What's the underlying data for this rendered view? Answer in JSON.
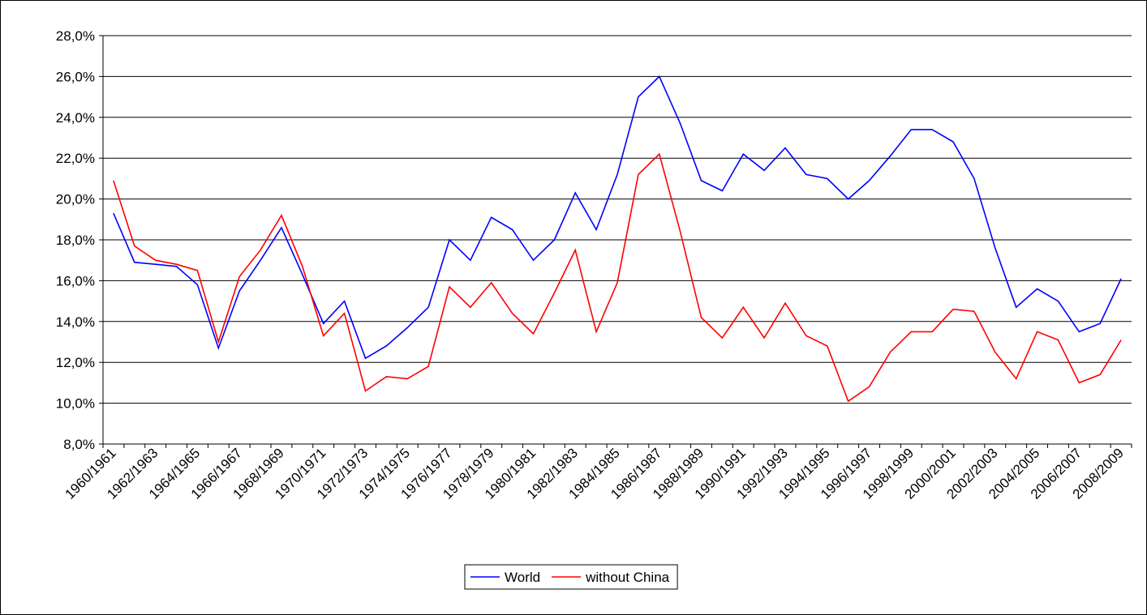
{
  "chart_data": {
    "type": "line",
    "categories": [
      "1960/1961",
      null,
      "1962/1963",
      null,
      "1964/1965",
      null,
      "1966/1967",
      null,
      "1968/1969",
      null,
      "1970/1971",
      null,
      "1972/1973",
      null,
      "1974/1975",
      null,
      "1976/1977",
      null,
      "1978/1979",
      null,
      "1980/1981",
      null,
      "1982/1983",
      null,
      "1984/1985",
      null,
      "1986/1987",
      null,
      "1988/1989",
      null,
      "1990/1991",
      null,
      "1992/1993",
      null,
      "1994/1995",
      null,
      "1996/1997",
      null,
      "1998/1999",
      null,
      "2000/2001",
      null,
      "2002/2003",
      null,
      "2004/2005",
      null,
      "2006/2007",
      null,
      "2008/2009"
    ],
    "series": [
      {
        "name": "World",
        "color": "#0000ff",
        "values": [
          19.3,
          16.9,
          16.8,
          16.7,
          15.8,
          12.7,
          15.5,
          17.0,
          18.6,
          16.3,
          13.9,
          15.0,
          12.2,
          12.8,
          13.7,
          14.7,
          18.0,
          17.0,
          19.1,
          18.5,
          17.0,
          18.0,
          20.3,
          18.5,
          21.2,
          25.0,
          26.0,
          23.7,
          20.9,
          20.4,
          22.2,
          21.4,
          22.5,
          21.2,
          21.0,
          20.0,
          20.9,
          22.1,
          23.4,
          23.4,
          22.8,
          21.0,
          17.6,
          14.7,
          15.6,
          15.0,
          13.5,
          13.9,
          16.1
        ]
      },
      {
        "name": "without China",
        "color": "#ff0000",
        "values": [
          20.9,
          17.7,
          17.0,
          16.8,
          16.5,
          13.0,
          16.2,
          17.5,
          19.2,
          16.7,
          13.3,
          14.4,
          10.6,
          11.3,
          11.2,
          11.8,
          15.7,
          14.7,
          15.9,
          14.4,
          13.4,
          15.4,
          17.5,
          13.5,
          15.9,
          21.2,
          22.2,
          18.4,
          14.2,
          13.2,
          14.7,
          13.2,
          14.9,
          13.3,
          12.8,
          10.1,
          10.8,
          12.5,
          13.5,
          13.5,
          14.6,
          14.5,
          12.5,
          11.2,
          13.5,
          13.1,
          11.0,
          11.4,
          13.1
        ]
      }
    ],
    "ylim": [
      8,
      28
    ],
    "yticks": [
      {
        "value": 8,
        "label": "8,0%"
      },
      {
        "value": 10,
        "label": "10,0%"
      },
      {
        "value": 12,
        "label": "12,0%"
      },
      {
        "value": 14,
        "label": "14,0%"
      },
      {
        "value": 16,
        "label": "16,0%"
      },
      {
        "value": 18,
        "label": "18,0%"
      },
      {
        "value": 20,
        "label": "20,0%"
      },
      {
        "value": 22,
        "label": "22,0%"
      },
      {
        "value": 24,
        "label": "24,0%"
      },
      {
        "value": 26,
        "label": "26,0%"
      },
      {
        "value": 28,
        "label": "28,0%"
      }
    ],
    "grid": true,
    "legend": "bottom"
  }
}
